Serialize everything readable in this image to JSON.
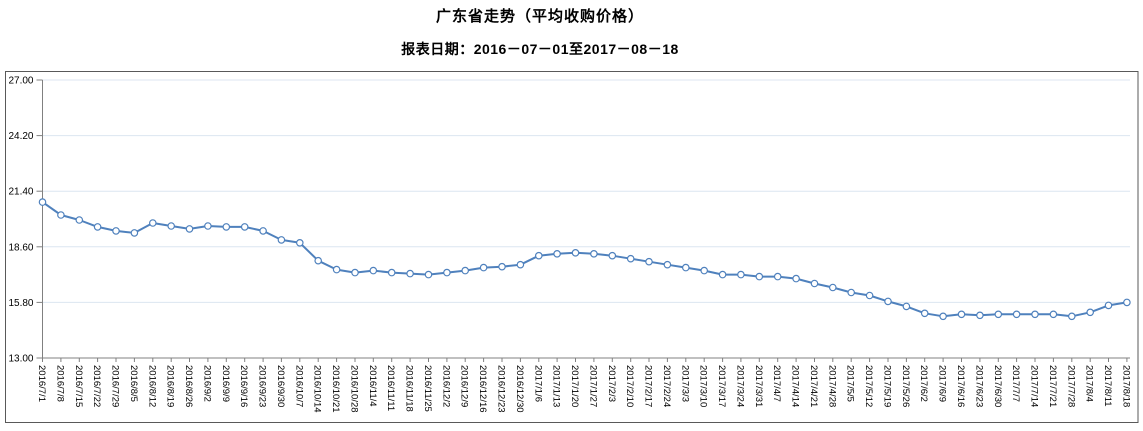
{
  "header": {
    "title": "广东省走势（平均收购价格）",
    "subtitle": "报表日期：2016－07－01至2017－08－18"
  },
  "chart_data": {
    "type": "line",
    "title": "广东省走势（平均收购价格）",
    "series_name": "平均收购价格",
    "x": [
      "2016/7/1",
      "2016/7/8",
      "2016/7/15",
      "2016/7/22",
      "2016/7/29",
      "2016/8/5",
      "2016/8/12",
      "2016/8/19",
      "2016/8/26",
      "2016/9/2",
      "2016/9/9",
      "2016/9/16",
      "2016/9/23",
      "2016/9/30",
      "2016/10/7",
      "2016/10/14",
      "2016/10/21",
      "2016/10/28",
      "2016/11/4",
      "2016/11/11",
      "2016/11/18",
      "2016/11/25",
      "2016/12/2",
      "2016/12/9",
      "2016/12/16",
      "2016/12/23",
      "2016/12/30",
      "2017/1/6",
      "2017/1/13",
      "2017/1/20",
      "2017/1/27",
      "2017/2/3",
      "2017/2/10",
      "2017/2/17",
      "2017/2/24",
      "2017/3/3",
      "2017/3/10",
      "2017/3/17",
      "2017/3/24",
      "2017/3/31",
      "2017/4/7",
      "2017/4/14",
      "2017/4/21",
      "2017/4/28",
      "2017/5/5",
      "2017/5/12",
      "2017/5/19",
      "2017/5/26",
      "2017/6/2",
      "2017/6/9",
      "2017/6/16",
      "2017/6/23",
      "2017/6/30",
      "2017/7/7",
      "2017/7/14",
      "2017/7/21",
      "2017/7/28",
      "2017/8/4",
      "2017/8/11",
      "2017/8/18"
    ],
    "values": [
      20.85,
      20.2,
      19.95,
      19.6,
      19.4,
      19.3,
      19.8,
      19.65,
      19.5,
      19.65,
      19.6,
      19.6,
      19.4,
      18.95,
      18.8,
      17.9,
      17.45,
      17.3,
      17.4,
      17.3,
      17.25,
      17.2,
      17.3,
      17.4,
      17.55,
      17.6,
      17.7,
      18.15,
      18.25,
      18.3,
      18.25,
      18.15,
      18.0,
      17.85,
      17.7,
      17.55,
      17.4,
      17.2,
      17.2,
      17.1,
      17.1,
      17.0,
      16.75,
      16.55,
      16.3,
      16.15,
      15.85,
      15.6,
      15.25,
      15.1,
      15.2,
      15.15,
      15.2,
      15.2,
      15.2,
      15.2,
      15.1,
      15.3,
      15.65,
      15.8
    ],
    "ylim": [
      13.0,
      27.0
    ],
    "yticks": [
      27.0,
      24.2,
      21.4,
      18.6,
      15.8,
      13.0
    ],
    "ytick_labels": [
      "27.00",
      "24.20",
      "21.40",
      "18.60",
      "15.80",
      "13.00"
    ],
    "grid": true,
    "legend": "none",
    "x_label_rotation_deg": 90,
    "line_color": "#4F81BD",
    "marker_fill": "#FFFFFF",
    "gridline_color": "#DCE6F1",
    "axis_color": "#808080",
    "frame_color": "#595959",
    "label_color": "#000000"
  }
}
